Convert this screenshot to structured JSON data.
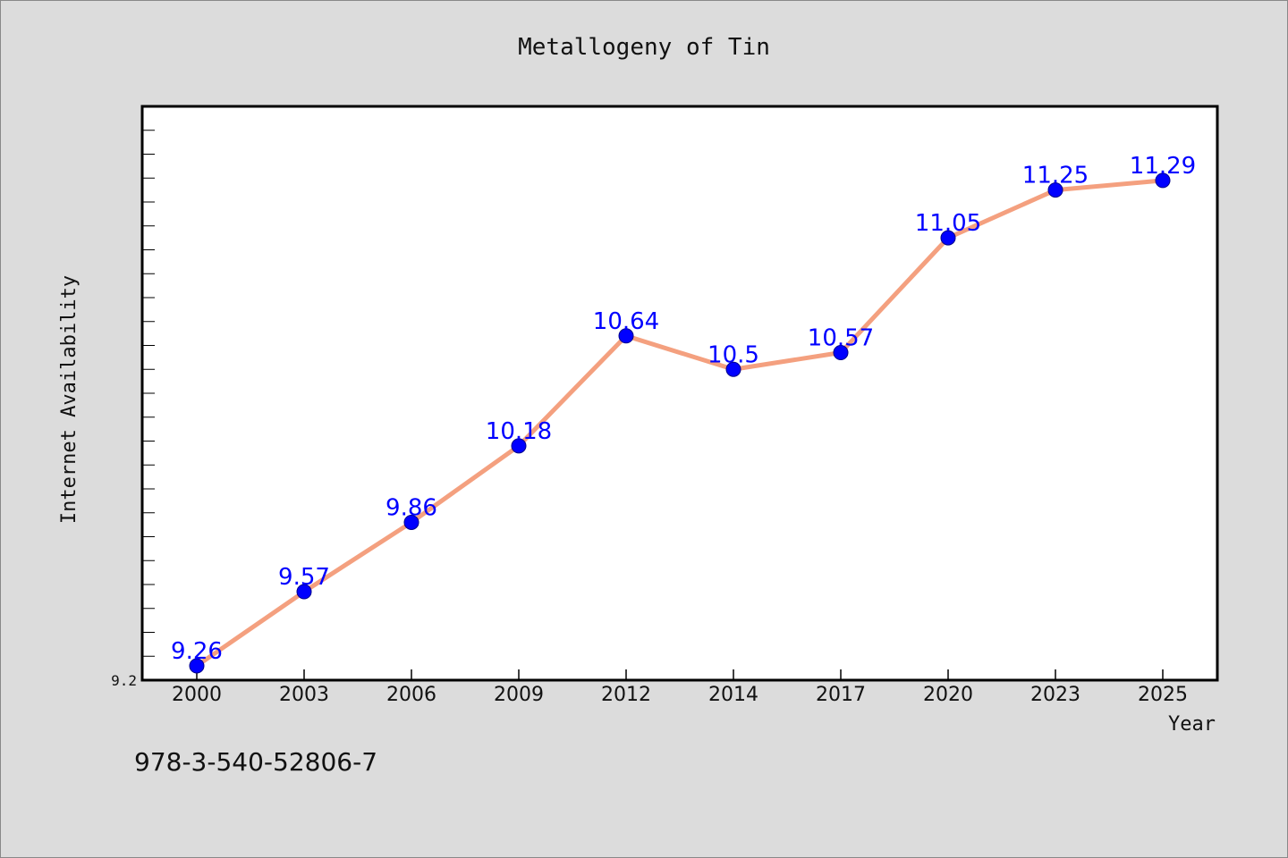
{
  "chart_data": {
    "type": "line",
    "title": "Metallogeny of Tin",
    "xlabel": "Year",
    "ylabel": "Internet Availability",
    "categories": [
      "2000",
      "2003",
      "2006",
      "2009",
      "2012",
      "2014",
      "2017",
      "2020",
      "2023",
      "2025"
    ],
    "series": [
      {
        "values": [
          9.26,
          9.57,
          9.86,
          10.18,
          10.64,
          10.5,
          10.57,
          11.05,
          11.25,
          11.29
        ],
        "labels": [
          "9.26",
          "9.57",
          "9.86",
          "10.18",
          "10.64",
          "10.5",
          "10.57",
          "11.05",
          "11.25",
          "11.29"
        ]
      }
    ],
    "ylim": [
      9.2,
      11.6
    ],
    "ytick_labels": [
      "9.2"
    ],
    "grid": false,
    "colors": {
      "line": "#f4a07f",
      "marker": "#0000ff",
      "data_label": "#0000ff",
      "plot_background": "#ffffff",
      "page_background": "#dcdcdc"
    }
  },
  "footer_text": "978-3-540-52806-7"
}
